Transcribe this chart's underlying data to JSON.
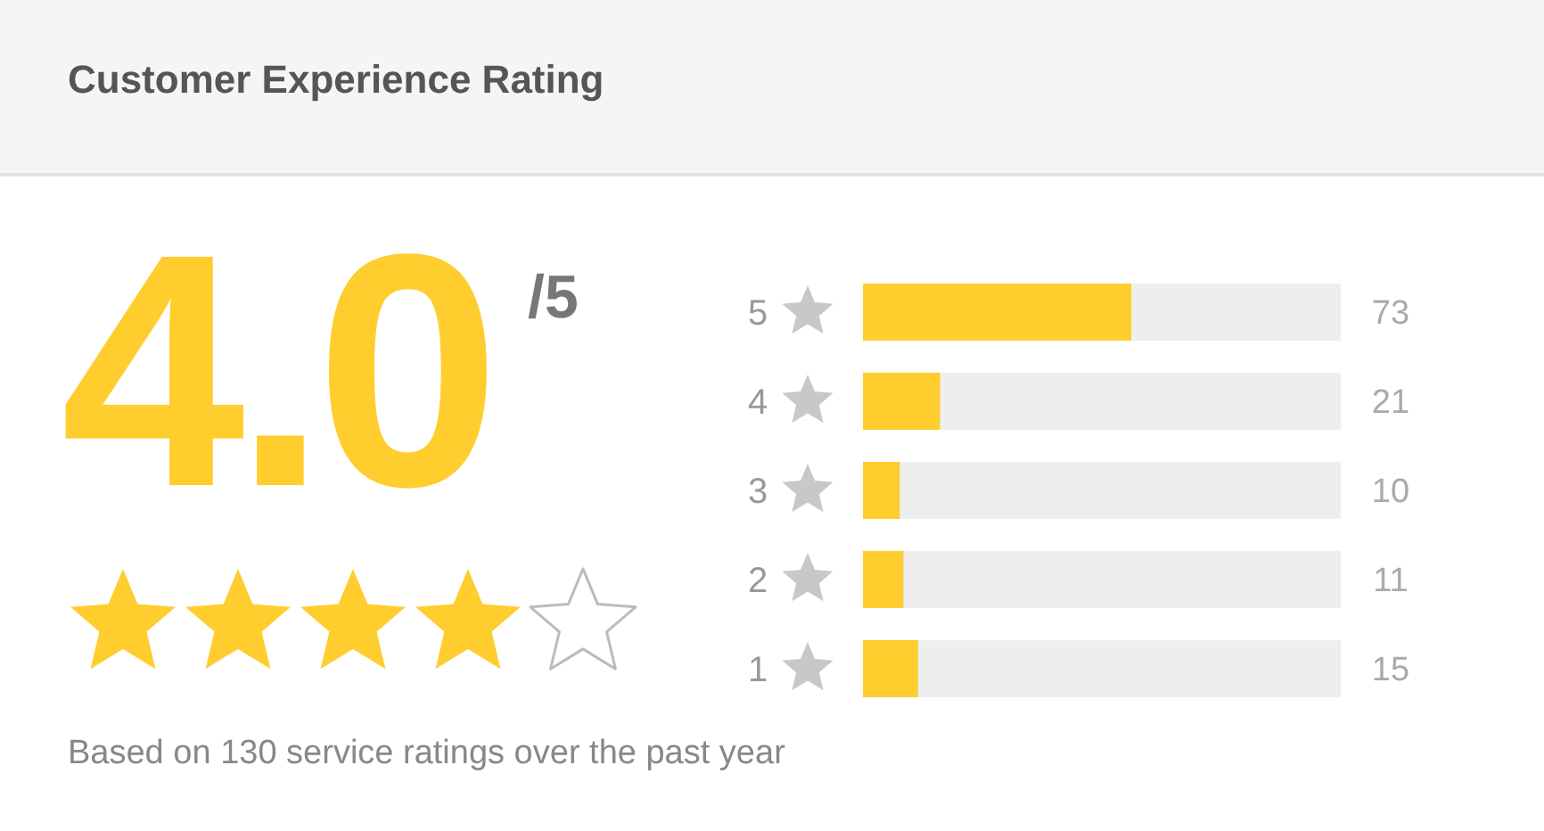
{
  "chart_data": {
    "type": "bar",
    "orientation": "horizontal",
    "title": "Customer Experience Rating",
    "categories": [
      "5",
      "4",
      "3",
      "2",
      "1"
    ],
    "values": [
      73,
      21,
      10,
      11,
      15
    ],
    "color": "#ffcd2e",
    "xlim": [
      0,
      130
    ],
    "data_labels": true,
    "annotations": [
      "4.0",
      "/5",
      "Based on 130 service ratings over the past year"
    ]
  }
}
